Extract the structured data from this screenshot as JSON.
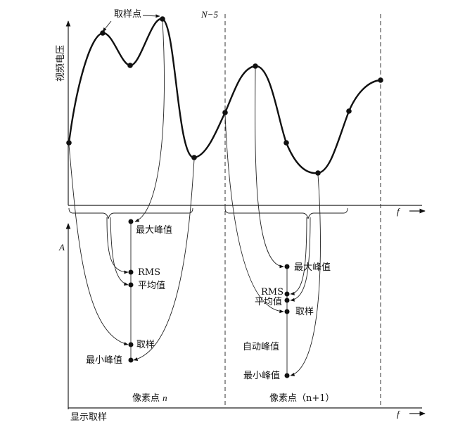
{
  "top_panel": {
    "y_axis_label": "视频电压",
    "x_axis_label": "f",
    "sample_label": "取样点",
    "bin_marker_label": "N−5"
  },
  "pixel_n": {
    "max_peak": "最大峰值",
    "rms": "RMS",
    "average": "平均值",
    "sample": "取样",
    "min_peak": "最小峰值",
    "caption_text": "像素点",
    "caption_var": "n"
  },
  "pixel_n1": {
    "max_peak": "最大峰值",
    "rms": "RMS",
    "average": "平均值",
    "sample": "取样",
    "auto_peak": "自动峰值",
    "min_peak": "最小峰值",
    "caption": "像素点（n+1）"
  },
  "bottom_panel": {
    "y_axis_label": "A",
    "x_axis_label": "f",
    "corner_label": "显示取样"
  }
}
